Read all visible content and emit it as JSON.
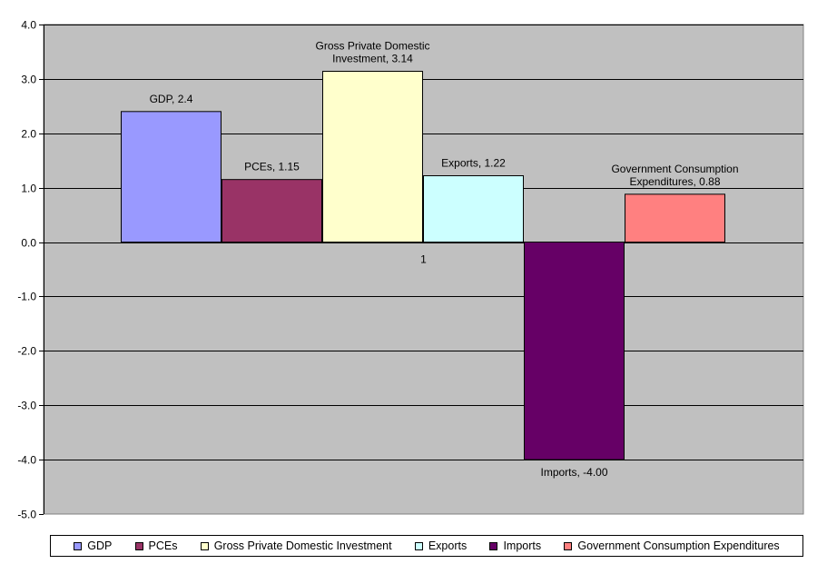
{
  "chart_data": {
    "type": "bar",
    "title": "",
    "xlabel": "",
    "ylabel": "",
    "categories": [
      "1"
    ],
    "ylim": [
      -5.0,
      4.0
    ],
    "y_ticks": [
      "4.0",
      "3.0",
      "2.0",
      "1.0",
      "0.0",
      "-1.0",
      "-2.0",
      "-3.0",
      "-4.0",
      "-5.0"
    ],
    "grid": true,
    "legend_position": "bottom",
    "series": [
      {
        "name": "GDP",
        "values": [
          2.4
        ],
        "data_label": "GDP, 2.4",
        "color": "#9999ff"
      },
      {
        "name": "PCEs",
        "values": [
          1.15
        ],
        "data_label": "PCEs, 1.15",
        "color": "#993366"
      },
      {
        "name": "Gross Private Domestic Investment",
        "values": [
          3.14
        ],
        "data_label": "Gross Private Domestic Investment, 3.14",
        "color": "#ffffcc"
      },
      {
        "name": "Exports",
        "values": [
          1.22
        ],
        "data_label": "Exports, 1.22",
        "color": "#ccffff"
      },
      {
        "name": "Imports",
        "values": [
          -4.0
        ],
        "data_label": "Imports, -4.00",
        "color": "#660066"
      },
      {
        "name": "Government Consumption Expenditures",
        "values": [
          0.88
        ],
        "data_label": "Government Consumption Expenditures, 0.88",
        "color": "#ff8080"
      }
    ],
    "plot_background": "#c0c0c0"
  }
}
